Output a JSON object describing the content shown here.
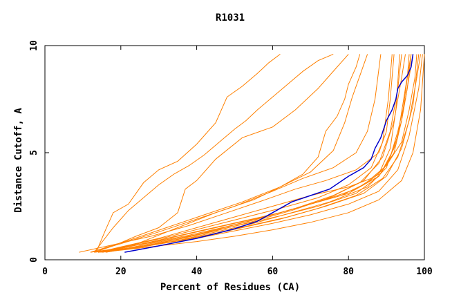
{
  "chart_data": {
    "type": "line",
    "title": "R1031",
    "xlabel": "Percent of Residues (CA)",
    "ylabel": "Distance Cutoff, A",
    "xlim": [
      0,
      100
    ],
    "ylim": [
      0,
      10
    ],
    "xticks": [
      0,
      20,
      40,
      60,
      80,
      100
    ],
    "yticks": [
      0,
      5,
      10
    ],
    "grid": false,
    "legend": "none",
    "colors": {
      "others": "#ff8000",
      "highlight": "#0000cc"
    },
    "series": [
      {
        "values": [
          [
            14,
            0.35
          ],
          [
            20,
            0.6
          ],
          [
            30,
            1.0
          ],
          [
            40,
            1.5
          ],
          [
            50,
            2.0
          ],
          [
            60,
            2.5
          ],
          [
            70,
            3.0
          ],
          [
            80,
            3.4
          ],
          [
            86,
            3.8
          ],
          [
            90,
            4.4
          ],
          [
            94,
            5.5
          ],
          [
            96,
            7.0
          ],
          [
            97.5,
            8.5
          ],
          [
            98,
            9.6
          ]
        ]
      },
      {
        "values": [
          [
            13,
            0.35
          ],
          [
            20,
            0.55
          ],
          [
            30,
            0.9
          ],
          [
            40,
            1.3
          ],
          [
            50,
            1.7
          ],
          [
            60,
            2.1
          ],
          [
            70,
            2.6
          ],
          [
            80,
            3.1
          ],
          [
            88,
            3.9
          ],
          [
            92,
            5.0
          ],
          [
            94,
            6.5
          ],
          [
            95.5,
            8.5
          ],
          [
            96,
            9.6
          ]
        ]
      },
      {
        "values": [
          [
            15,
            0.35
          ],
          [
            22,
            0.6
          ],
          [
            32,
            1.0
          ],
          [
            42,
            1.4
          ],
          [
            52,
            1.8
          ],
          [
            62,
            2.2
          ],
          [
            72,
            2.7
          ],
          [
            82,
            3.3
          ],
          [
            88,
            4.0
          ],
          [
            91,
            5.2
          ],
          [
            92.5,
            7.0
          ],
          [
            93.5,
            9.6
          ]
        ]
      },
      {
        "values": [
          [
            16,
            0.35
          ],
          [
            25,
            0.6
          ],
          [
            35,
            0.9
          ],
          [
            45,
            1.3
          ],
          [
            55,
            1.7
          ],
          [
            65,
            2.2
          ],
          [
            75,
            2.7
          ],
          [
            85,
            3.4
          ],
          [
            90,
            4.3
          ],
          [
            93,
            5.8
          ],
          [
            95,
            8.0
          ],
          [
            96.5,
            9.6
          ]
        ]
      },
      {
        "values": [
          [
            14,
            0.35
          ],
          [
            22,
            0.5
          ],
          [
            32,
            0.8
          ],
          [
            42,
            1.1
          ],
          [
            52,
            1.5
          ],
          [
            62,
            1.9
          ],
          [
            72,
            2.4
          ],
          [
            82,
            3.0
          ],
          [
            89,
            3.8
          ],
          [
            93,
            4.8
          ],
          [
            96,
            6.5
          ],
          [
            98,
            8.5
          ],
          [
            99,
            9.6
          ]
        ]
      },
      {
        "values": [
          [
            13,
            0.35
          ],
          [
            20,
            0.5
          ],
          [
            30,
            0.75
          ],
          [
            40,
            1.0
          ],
          [
            50,
            1.35
          ],
          [
            60,
            1.7
          ],
          [
            70,
            2.1
          ],
          [
            80,
            2.6
          ],
          [
            88,
            3.2
          ],
          [
            93,
            4.2
          ],
          [
            96,
            5.8
          ],
          [
            98.5,
            8.0
          ],
          [
            99.5,
            9.6
          ]
        ]
      },
      {
        "values": [
          [
            15,
            0.35
          ],
          [
            24,
            0.55
          ],
          [
            34,
            0.85
          ],
          [
            44,
            1.2
          ],
          [
            54,
            1.6
          ],
          [
            64,
            2.0
          ],
          [
            74,
            2.5
          ],
          [
            84,
            3.1
          ],
          [
            90,
            3.9
          ],
          [
            94,
            5.2
          ],
          [
            97,
            7.2
          ],
          [
            98.5,
            9.6
          ]
        ]
      },
      {
        "values": [
          [
            14,
            0.35
          ],
          [
            20,
            0.45
          ],
          [
            30,
            0.65
          ],
          [
            40,
            0.85
          ],
          [
            50,
            1.1
          ],
          [
            60,
            1.4
          ],
          [
            70,
            1.75
          ],
          [
            80,
            2.2
          ],
          [
            88,
            2.8
          ],
          [
            94,
            3.7
          ],
          [
            97,
            5.0
          ],
          [
            99,
            7.0
          ],
          [
            100,
            9.6
          ]
        ]
      },
      {
        "values": [
          [
            15,
            0.35
          ],
          [
            25,
            0.6
          ],
          [
            35,
            0.95
          ],
          [
            45,
            1.35
          ],
          [
            55,
            1.8
          ],
          [
            65,
            2.3
          ],
          [
            75,
            2.9
          ],
          [
            83,
            3.6
          ],
          [
            88,
            4.5
          ],
          [
            91,
            6.0
          ],
          [
            93,
            8.0
          ],
          [
            94,
            9.6
          ]
        ]
      },
      {
        "values": [
          [
            16,
            0.35
          ],
          [
            26,
            0.65
          ],
          [
            36,
            1.0
          ],
          [
            46,
            1.45
          ],
          [
            56,
            1.9
          ],
          [
            66,
            2.4
          ],
          [
            76,
            3.0
          ],
          [
            84,
            3.7
          ],
          [
            89,
            4.8
          ],
          [
            92,
            6.5
          ],
          [
            94,
            8.5
          ],
          [
            95,
            9.6
          ]
        ]
      },
      {
        "values": [
          [
            14,
            0.35
          ],
          [
            22,
            0.55
          ],
          [
            32,
            0.9
          ],
          [
            42,
            1.25
          ],
          [
            52,
            1.65
          ],
          [
            62,
            2.05
          ],
          [
            72,
            2.5
          ],
          [
            82,
            3.1
          ],
          [
            88,
            3.9
          ],
          [
            91,
            4.8
          ],
          [
            93,
            6.0
          ],
          [
            95,
            7.5
          ],
          [
            97,
            9.6
          ]
        ]
      },
      {
        "values": [
          [
            12,
            0.35
          ],
          [
            18,
            0.5
          ],
          [
            28,
            0.8
          ],
          [
            38,
            1.15
          ],
          [
            48,
            1.55
          ],
          [
            58,
            2.0
          ],
          [
            68,
            2.5
          ],
          [
            78,
            3.0
          ],
          [
            85,
            3.6
          ],
          [
            89,
            4.2
          ],
          [
            92,
            5.2
          ],
          [
            94,
            6.5
          ],
          [
            95.5,
            8.0
          ],
          [
            96.5,
            9.6
          ]
        ]
      },
      {
        "values": [
          [
            9,
            0.35
          ],
          [
            18,
            0.7
          ],
          [
            28,
            1.1
          ],
          [
            38,
            1.6
          ],
          [
            48,
            2.2
          ],
          [
            58,
            2.8
          ],
          [
            66,
            3.3
          ],
          [
            74,
            3.7
          ],
          [
            82,
            4.2
          ],
          [
            88,
            5.0
          ],
          [
            90,
            6.0
          ],
          [
            91,
            7.5
          ],
          [
            92,
            9.6
          ]
        ]
      },
      {
        "values": [
          [
            12,
            0.35
          ],
          [
            20,
            0.75
          ],
          [
            30,
            1.3
          ],
          [
            40,
            1.9
          ],
          [
            50,
            2.5
          ],
          [
            60,
            3.2
          ],
          [
            68,
            3.8
          ],
          [
            76,
            4.3
          ],
          [
            82,
            5.0
          ],
          [
            85,
            6.0
          ],
          [
            87,
            7.5
          ],
          [
            88.5,
            9.6
          ]
        ]
      },
      {
        "values": [
          [
            15,
            0.35
          ],
          [
            22,
            0.65
          ],
          [
            32,
            1.05
          ],
          [
            42,
            1.5
          ],
          [
            52,
            1.95
          ],
          [
            62,
            2.4
          ],
          [
            72,
            2.9
          ],
          [
            80,
            3.5
          ],
          [
            86,
            4.3
          ],
          [
            89,
            5.5
          ],
          [
            90.5,
            7.5
          ],
          [
            91.5,
            9.6
          ]
        ]
      },
      {
        "values": [
          [
            13,
            0.35
          ],
          [
            18,
            1.5
          ],
          [
            22,
            2.3
          ],
          [
            26,
            2.9
          ],
          [
            30,
            3.5
          ],
          [
            34,
            4.0
          ],
          [
            38,
            4.4
          ],
          [
            42,
            4.9
          ],
          [
            46,
            5.5
          ],
          [
            50,
            6.1
          ],
          [
            53,
            6.5
          ],
          [
            56,
            7.0
          ],
          [
            60,
            7.6
          ],
          [
            64,
            8.2
          ],
          [
            68,
            8.8
          ],
          [
            72,
            9.3
          ],
          [
            76,
            9.6
          ]
        ]
      },
      {
        "values": [
          [
            13.5,
            0.35
          ],
          [
            16,
            1.4
          ],
          [
            18,
            2.2
          ],
          [
            22,
            2.6
          ],
          [
            26,
            3.6
          ],
          [
            30,
            4.2
          ],
          [
            35,
            4.6
          ],
          [
            40,
            5.4
          ],
          [
            45,
            6.4
          ],
          [
            48,
            7.6
          ],
          [
            52,
            8.1
          ],
          [
            56,
            8.7
          ],
          [
            59,
            9.2
          ],
          [
            62,
            9.6
          ]
        ]
      },
      {
        "values": [
          [
            13,
            0.35
          ],
          [
            18,
            0.65
          ],
          [
            24,
            1.1
          ],
          [
            30,
            1.5
          ],
          [
            35,
            2.2
          ],
          [
            37,
            3.3
          ],
          [
            40,
            3.7
          ],
          [
            45,
            4.7
          ],
          [
            52,
            5.7
          ],
          [
            60,
            6.2
          ],
          [
            66,
            7.0
          ],
          [
            72,
            8.0
          ],
          [
            77,
            9.0
          ],
          [
            80,
            9.6
          ]
        ]
      },
      {
        "values": [
          [
            15,
            0.35
          ],
          [
            25,
            0.8
          ],
          [
            35,
            1.5
          ],
          [
            45,
            2.2
          ],
          [
            55,
            2.8
          ],
          [
            62,
            3.4
          ],
          [
            68,
            4.0
          ],
          [
            72,
            4.8
          ],
          [
            74,
            6.0
          ],
          [
            77,
            6.7
          ],
          [
            79,
            7.5
          ],
          [
            80,
            8.2
          ],
          [
            82,
            9.0
          ],
          [
            83,
            9.6
          ]
        ]
      },
      {
        "values": [
          [
            12,
            0.35
          ],
          [
            22,
            0.9
          ],
          [
            32,
            1.5
          ],
          [
            42,
            2.1
          ],
          [
            52,
            2.7
          ],
          [
            62,
            3.4
          ],
          [
            70,
            4.1
          ],
          [
            76,
            5.1
          ],
          [
            79,
            6.4
          ],
          [
            81,
            7.6
          ],
          [
            83,
            8.6
          ],
          [
            85,
            9.6
          ]
        ]
      }
    ],
    "highlight": {
      "values": [
        [
          21,
          0.35
        ],
        [
          30,
          0.65
        ],
        [
          40,
          1.0
        ],
        [
          50,
          1.45
        ],
        [
          56,
          1.8
        ],
        [
          60,
          2.2
        ],
        [
          65,
          2.7
        ],
        [
          70,
          3.0
        ],
        [
          75,
          3.3
        ],
        [
          80,
          3.9
        ],
        [
          84,
          4.3
        ],
        [
          86,
          4.7
        ],
        [
          87,
          5.2
        ],
        [
          88.5,
          5.7
        ],
        [
          90,
          6.5
        ],
        [
          91.5,
          7.0
        ],
        [
          92.5,
          7.5
        ],
        [
          93,
          8.0
        ],
        [
          94,
          8.3
        ],
        [
          95.5,
          8.6
        ],
        [
          96.5,
          9.0
        ],
        [
          97,
          9.6
        ]
      ]
    }
  }
}
